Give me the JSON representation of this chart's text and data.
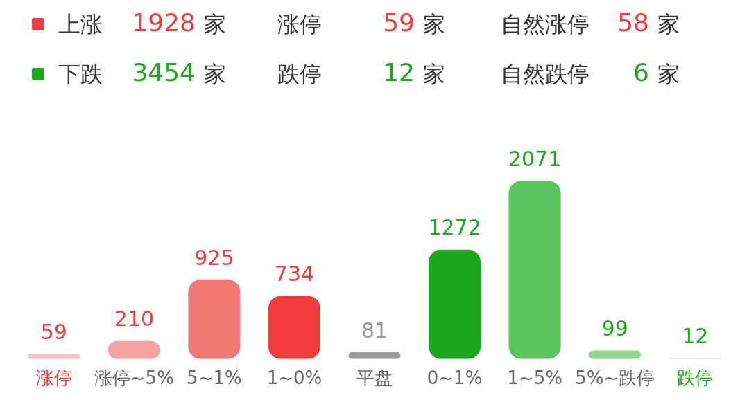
{
  "chart_data": {
    "type": "bar",
    "annotations": [
      "上涨 1928 家",
      "涨停 59 家",
      "自然涨停 58 家",
      "下跌 3454 家",
      "跌停 12 家",
      "自然跌停 6 家"
    ],
    "categories": [
      "涨停",
      "涨停~5%",
      "5~1%",
      "1~0%",
      "平盘",
      "0~1%",
      "1~5%",
      "5%~跌停",
      "跌停"
    ],
    "values": [
      59,
      210,
      925,
      734,
      81,
      1272,
      2071,
      99,
      12
    ],
    "colors": [
      "#f8c4c6",
      "#f4a2a4",
      "#f27878",
      "#ef3c3c",
      "#9a9a9a",
      "#1ca81c",
      "#5ec45e",
      "#90d690",
      "#bfe6bf"
    ],
    "data_labels": true,
    "grid": false,
    "legend": false
  }
}
